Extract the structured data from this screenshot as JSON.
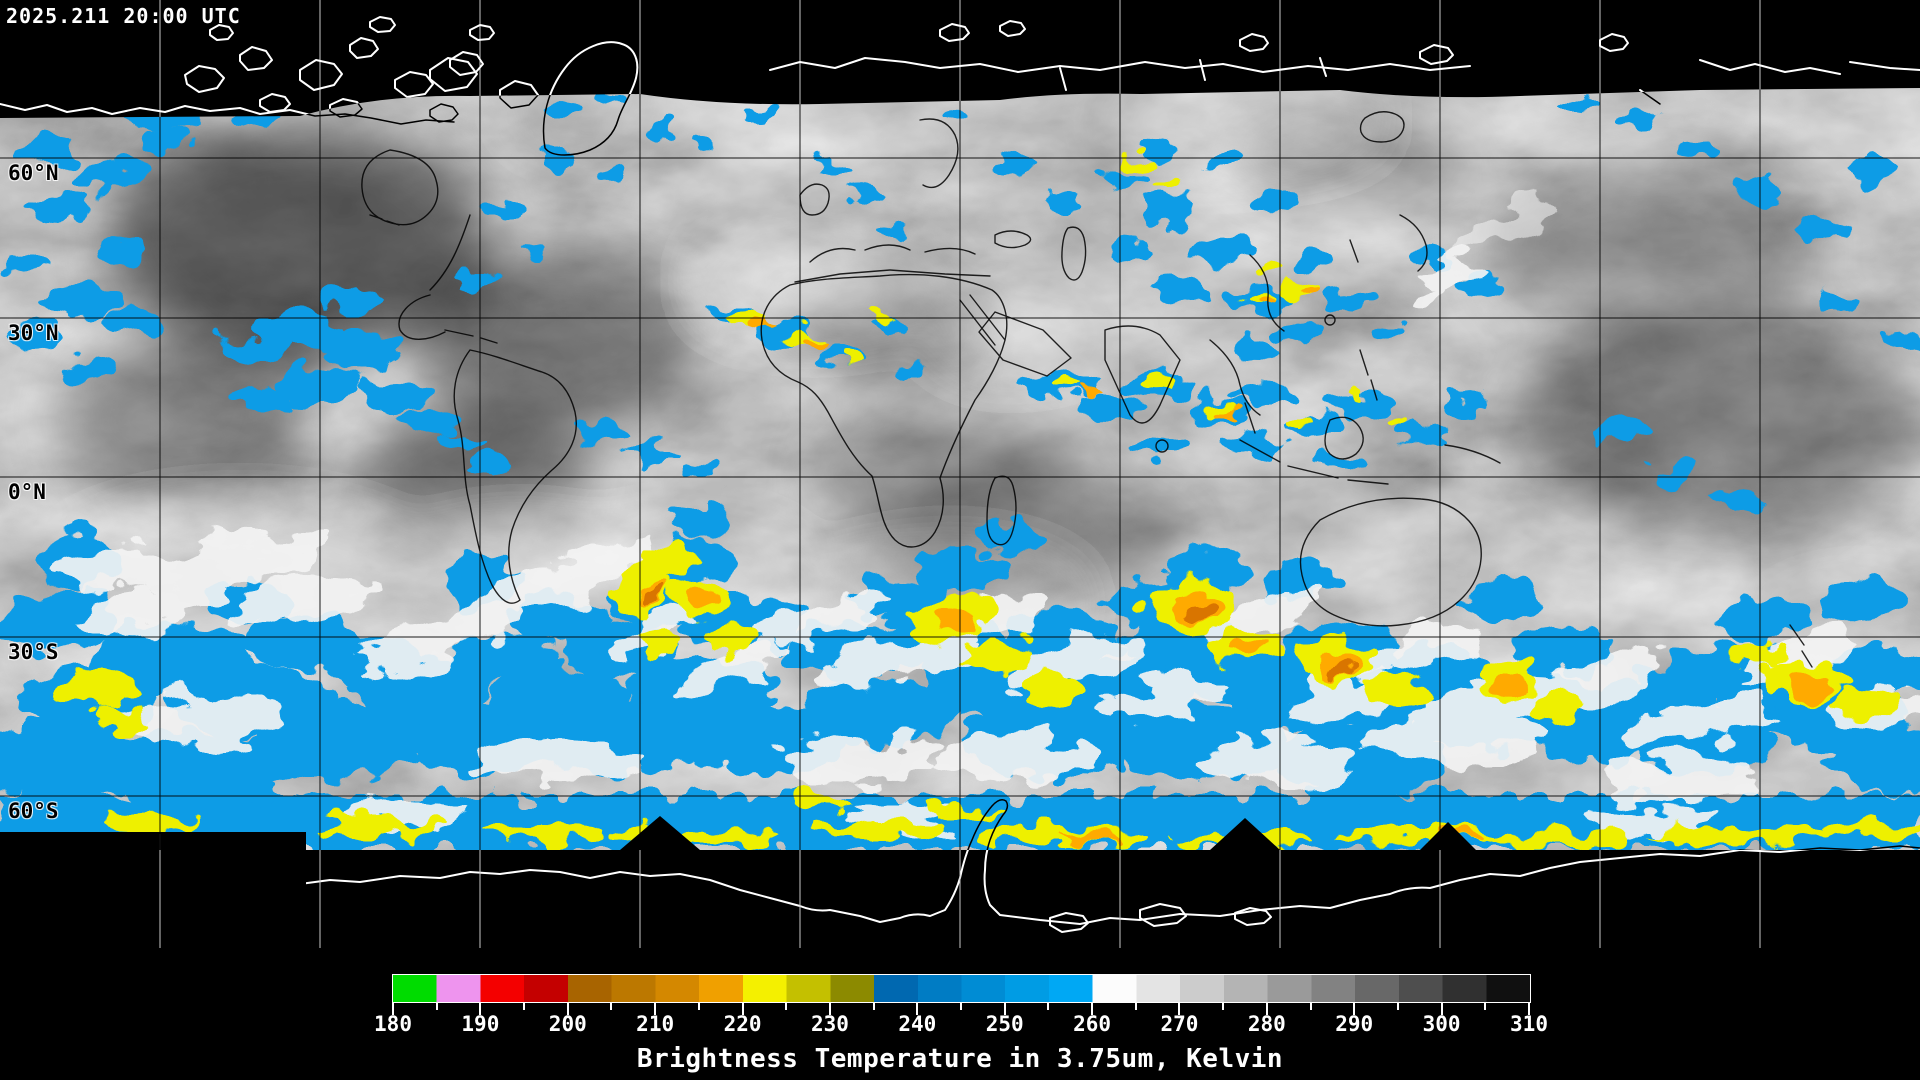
{
  "header": {
    "timestamp": "2025.211 20:00 UTC"
  },
  "map": {
    "latitude_labels": [
      {
        "text": "60°N"
      },
      {
        "text": "30°N"
      },
      {
        "text": "0°N"
      },
      {
        "text": "30°S"
      },
      {
        "text": "60°S"
      }
    ],
    "grid": {
      "lat_lines_deg": [
        60,
        30,
        0,
        -30,
        -60
      ],
      "lon_spacing_deg": 30
    },
    "palette": {
      "cloud_blue": "#0a9ce6",
      "cloud_yellow": "#eef000",
      "cloud_orange": "#ffaa00",
      "cloud_deep_orange": "#d97400",
      "coastline_dark": "#000000",
      "coastline_polar": "#ffffff"
    }
  },
  "colorbar": {
    "caption": "Brightness Temperature in 3.75um, Kelvin",
    "unit": "Kelvin",
    "range": [
      180,
      310
    ],
    "tick_labels": [
      "180",
      "190",
      "200",
      "210",
      "220",
      "230",
      "240",
      "250",
      "260",
      "270",
      "280",
      "290",
      "300",
      "310"
    ],
    "minor_tick_step": 5,
    "segments": [
      {
        "from": 180,
        "to": 185,
        "color": "#00dc00"
      },
      {
        "from": 185,
        "to": 190,
        "color": "#ee94ee"
      },
      {
        "from": 190,
        "to": 195,
        "color": "#f40000"
      },
      {
        "from": 195,
        "to": 200,
        "color": "#c40000"
      },
      {
        "from": 200,
        "to": 205,
        "color": "#a86400"
      },
      {
        "from": 205,
        "to": 210,
        "color": "#bc7800"
      },
      {
        "from": 210,
        "to": 215,
        "color": "#d48800"
      },
      {
        "from": 215,
        "to": 220,
        "color": "#f0a000"
      },
      {
        "from": 220,
        "to": 225,
        "color": "#f4f000"
      },
      {
        "from": 225,
        "to": 230,
        "color": "#c4c000"
      },
      {
        "from": 230,
        "to": 235,
        "color": "#8c8a00"
      },
      {
        "from": 235,
        "to": 240,
        "color": "#0068b0"
      },
      {
        "from": 240,
        "to": 245,
        "color": "#007cc4"
      },
      {
        "from": 245,
        "to": 250,
        "color": "#008cd4"
      },
      {
        "from": 250,
        "to": 255,
        "color": "#009ce4"
      },
      {
        "from": 255,
        "to": 260,
        "color": "#00a8f4"
      },
      {
        "from": 260,
        "to": 265,
        "color": "#fcfcfc"
      },
      {
        "from": 265,
        "to": 270,
        "color": "#e4e4e4"
      },
      {
        "from": 270,
        "to": 275,
        "color": "#cccccc"
      },
      {
        "from": 275,
        "to": 280,
        "color": "#b4b4b4"
      },
      {
        "from": 280,
        "to": 285,
        "color": "#9a9a9a"
      },
      {
        "from": 285,
        "to": 290,
        "color": "#828282"
      },
      {
        "from": 290,
        "to": 295,
        "color": "#686868"
      },
      {
        "from": 295,
        "to": 300,
        "color": "#4e4e4e"
      },
      {
        "from": 300,
        "to": 305,
        "color": "#303030"
      },
      {
        "from": 305,
        "to": 310,
        "color": "#101010"
      }
    ]
  }
}
